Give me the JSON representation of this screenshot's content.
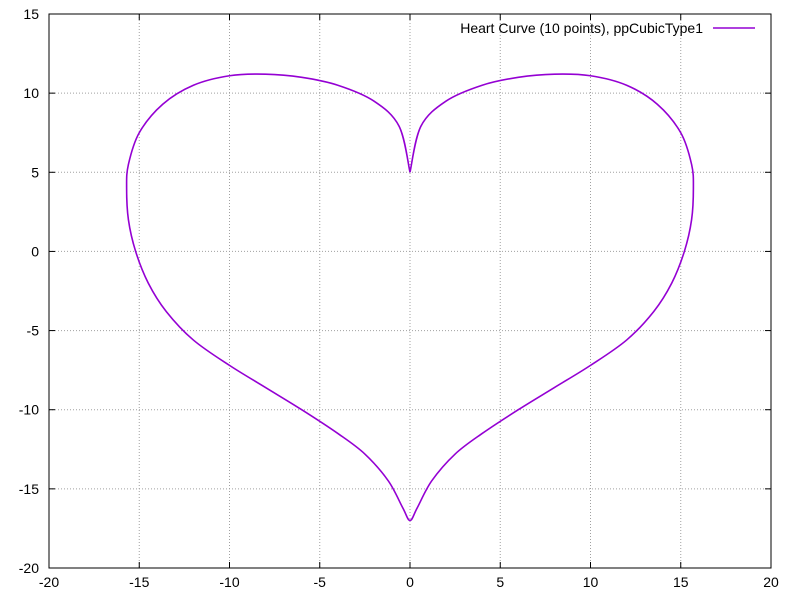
{
  "chart_data": {
    "type": "line",
    "title": "",
    "xlabel": "",
    "ylabel": "",
    "xlim": [
      -20,
      20
    ],
    "ylim": [
      -20,
      15
    ],
    "xticks": [
      -20,
      -15,
      -10,
      -5,
      0,
      5,
      10,
      15,
      20
    ],
    "yticks": [
      -20,
      -15,
      -10,
      -5,
      0,
      5,
      10,
      15
    ],
    "grid": true,
    "legend_position": "top-right",
    "series": [
      {
        "name": "Heart Curve (10 points), ppCubicType1",
        "color": "#9400d3",
        "x": [
          0,
          0.6,
          2.0,
          4.0,
          6.0,
          8.0,
          10.0,
          12.0,
          13.7,
          15.0,
          15.6,
          15.7,
          15.6,
          15.2,
          14.5,
          13.5,
          12.0,
          10.0,
          8.0,
          6.0,
          4.0,
          2.5,
          1.2,
          0.4,
          0,
          -0.4,
          -1.2,
          -2.5,
          -4.0,
          -6.0,
          -8.0,
          -10.0,
          -12.0,
          -13.5,
          -14.5,
          -15.2,
          -15.6,
          -15.7,
          -15.6,
          -15.0,
          -13.7,
          -12.0,
          -10.0,
          -8.0,
          -6.0,
          -4.0,
          -2.0,
          -0.6,
          0
        ],
        "y": [
          5.0,
          7.9,
          9.5,
          10.5,
          11.0,
          11.2,
          11.1,
          10.5,
          9.3,
          7.5,
          5.5,
          4.0,
          2.0,
          0,
          -2.0,
          -3.8,
          -5.6,
          -7.2,
          -8.6,
          -10.0,
          -11.5,
          -12.8,
          -14.5,
          -16.2,
          -17.0,
          -16.2,
          -14.5,
          -12.8,
          -11.5,
          -10.0,
          -8.6,
          -7.2,
          -5.6,
          -3.8,
          -2.0,
          0,
          2.0,
          4.0,
          5.5,
          7.5,
          9.3,
          10.5,
          11.1,
          11.2,
          11.0,
          10.5,
          9.5,
          7.9,
          5.0
        ]
      }
    ]
  }
}
